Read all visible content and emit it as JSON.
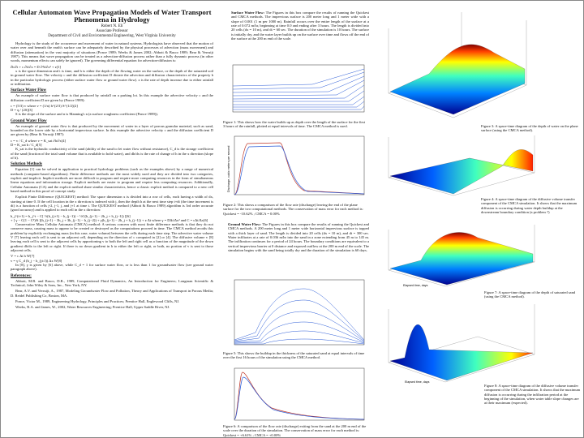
{
  "header": {
    "title": "Cellular Automaton Wave Propagation Models of Water Transport Phenomena in Hydrology",
    "author": "Robert N. Eli",
    "position": "Associate Professor",
    "department": "Department of Civil and Environmental Engineering, West Virginia University"
  },
  "left": [
    {
      "text": "Hydrology is the study of the occurrence and movement of water in natural systems. Hydrologists have observed that the motion of water over and beneath the earth's surface can be adequately described by the physical processes of advection (mass movement) and diffusion (attenuation) in the vast majority of situations (Ponce 1989; Weeks & James 2002; Abbott & Basco 1989; Bear & Verruijt 1987). This means that wave propagation can be treated as a advection-diffusion process rather than a fully dynamic process (in other words, momentum effects can safely be ignored). The governing differential equation for advection-diffusion is:"
    },
    {
      "equation_row": [
        {
          "expr": "∂h/∂t + c ∂h/∂x = D ∂²h/∂x² + z",
          "number": "[1]"
        }
      ]
    },
    {
      "text": "x is the space dimension and t is time, and h is either the depth of the flowing water on the surface, or the depth of the saturated soil in ground water flow. The velocity c and the diffusion coefficient D dictate the advection and diffusion characteristics of the property h in the particular hydrologic process (either surface water flow or ground water flow). z is the rate of depth increase due to either rainfall or infiltration."
    },
    {
      "heading": "Surface Water Flow"
    },
    {
      "text": "An example of surface water flow is that produced by rainfall on a parking lot. In this example the advective velocity c and the diffusion coefficient D are given by (Ponce 1989):"
    },
    {
      "equation_row": [
        {
          "expr": "c = (5/3) v   where   v = (1/n) h^(2/3) S^(1/2)",
          "number": "[2]"
        },
        {
          "expr": "D = q / (2S)",
          "number": "[3]"
        }
      ]
    },
    {
      "text": "S is the slope of the surface and n is Manning's n (a surface roughness coefficient (Ponce 1989))."
    },
    {
      "heading": "Ground Water Flow"
    },
    {
      "text": "An example of ground water flow is that produced by the movement of water in a layer of porous granular material, such as sand, bounded on the lower side by a horizontal impervious surface. In this example the advective velocity c and the diffusion coefficient D are given by (Bear & Verruijt 1987):"
    },
    {
      "equation_row": [
        {
          "expr": "c = v / C_d   where   v = K_sat ∂h/∂x",
          "number": "[4]"
        },
        {
          "expr": "D = K_sat h / C_d",
          "number": "[5]"
        }
      ]
    },
    {
      "text": "K_sat is the hydraulic conductivity of the sand (ability of the sand to let water flow without resistance), C_d is the storage coefficient of the sand (fraction of the total sand volume that is available to hold water), and dh/dx is the rate of change of h in the x direction (slope of h)."
    },
    {
      "heading": "Solution Methods"
    },
    {
      "text": "Equation [1] can be solved in application to practical hydrology problems (such as the examples above) by a range of numerical methods (computer-based algorithms). Finite difference methods are the most widely used and they are divided into two categories, explicit and implicit. Implicit methods are more difficult to program and require more computing resources in the form of simultaneous linear equations and information storage. Explicit methods are easier to program and require less computing resources. Additionally, Cellular Automata (CA) and the explicit method share similar characteristics, hence a classic explicit method is compared to a new cell based method in this proof of concept study."
    },
    {
      "text": "Explicit Finite Difference (QUICKEST) method: The space dimension x is divided into a row of cells, each having a width of dx, starting at time 0. If the cell location in the x direction is indexed with j, then the depth h at the next time step t+dt (the time increment is dt) is a function of cells j-2, j-1, j, and j+1 at time t. The QUICKEST method (Abbott & Basco 1989) algorithm is 3rd order accurate (good accuracy) and is applied to each cell in the x direction:"
    },
    {
      "equation_row": [
        {
          "expr": "h_j^(t+1) = h_j^t − C[ ½(h_(j+1) − h_(j−1)) − ½C(h_(j+1) − 2h_j + h_(j−1)) ]",
          "number": "[6]"
        }
      ]
    },
    {
      "equation_row": [
        {
          "expr": "+ [ γ − C(1 − C²)/6 ](h_(j+1) − 3h_j + 3h_(j−1) − h_(j−2)) + γ(h_(j+1) − 2h_j + h_(j−1)) + z Δt   where  γ = DΔt/Δx²  and  C = cΔt/Δx",
          "number": "[6]"
        }
      ]
    },
    {
      "text": "Conservative Mass Cellular Automata (CMCA) method: A serious concern with most finite difference methods is that they do not conserve mass, causing mass to appear to be created or destroyed as the computations proceed in time. The CMCA method avoids this problem by explicitly exchanging mass (in this case, water volume) between the cells during each time step. The advective water volume V [7] leaving each cell is sent to an adjacent cell, depending on the direction of c computed in [2] or [4]. The diffusive volume v [8] leaving each cell is sent to the adjacent cells by apportioning v to both the left and right cell as a function of the magnitude of the down gradient dh/dx to the left or right. If there is no down gradient in h to either the left or right, or both, no portion of v is sent to those adjacent cells."
    },
    {
      "equation_row": [
        {
          "expr": "V = c Δt h W",
          "number": "[7]"
        },
        {
          "expr": "v = γ C_d (h_j − h_(j±1)) Δx W",
          "number": "[8]"
        }
      ]
    },
    {
      "text": "In [8], γ is given by [6] above, while C_d = 1 for surface water flow, or is less than 1 for groundwater flow (see ground water paragraph above)."
    },
    {
      "heading": "References:"
    },
    {
      "text": "Abbott, M.B. and Basco, D.R., 1989, Computational Fluid Dynamics, An Introduction for Engineers; Longman Scientific & Technical, John Wiley & Sons, Inc., New York, NY."
    },
    {
      "text": "Bear, A.V. and Verruijt, A., 1987, Modeling Groundwater Flow and Pollution, Theory and Applications of Transport in Porous Media; D. Reidel Publishing Co, Boston, MA."
    },
    {
      "text": "Ponce, Victor M., 1989, Engineering Hydrology, Principles and Practices; Prentice Hall, Englewood Cliffs, NJ."
    },
    {
      "text": "Weeks, R.A. and James, W., 2002, Water Resources Engineering; Prentice Hall, Upper Saddle River, NJ."
    }
  ],
  "surface_box": {
    "heading": "Surface Water Flow:",
    "text": "The Figures in this box compare the results of running the Quickest and CMCA methods. The impervious surface is 200 meter long and 1 meter wide with a slope of 0.001 (1 m per 1000 m). Rainfall occurs over the entire length of the surface at a rate of 0.072 m/hr, beginning at time 0.0 and ending after 3 hours. The length is divided into 20 cells (dx = 10 m), and dt = 60 sec. The duration of the simulation is 10 hours. The surface is initially dry, and the water layer builds up on the surface over time and flows off the end of the surface at the 200 m end of the scale."
  },
  "ground_box": {
    "heading": "Ground Water Flow:",
    "text": "The Figures in this box compare the results of running the Quickest and CMCA methods. A 200 meter long and 1 meter wide horizontal impervious surface is topped with a thick layer of sand. The length is divided into 20 cells (dx = 10 m), and dt = 300 sec. Water infiltrates at a rate of 0.036 m/hr into the sand in a zone extending from 45 m to 145 m. The infiltration continues for a period of 24 hours. The boundary conditions are equivalent to a vertical impervious barrier at 0 distance and exposed outflow at the 200 m end of the scale. The simulation begins with the sand being totally dry and the duration of the simulation is 60 days."
  },
  "figures": [
    {
      "caption": "Figure 1: This shows how the water builds up as depth over the length of the surface for the first 3 hours of the rainfall, plotted at equal intervals of time. The CMCA method is used."
    },
    {
      "caption": "Figure 2: This shows a comparison of the flow rate (discharge) leaving the end of the plane surface for the two computational methods. The conservation of mass error for each method is: Quickest = -10.62% ; CMCA = 0.00%",
      "y_label": "Discharge, cubic meters per second"
    },
    {
      "caption": "Figure 3: A space-time diagram of the depth of water on the plane surface (using the CMCA method)."
    },
    {
      "caption": "Figure 4: A space-time diagram of the diffusive volume transfer component of the CMCA simulation. It shows that the maximum diffusion is occurring during water depth buildup at the downstream boundary condition (a problem ?)"
    },
    {
      "caption": "Figure 5: This shows the buildup in the thickness of the saturated sand at equal intervals of time over the first 16 hours of the simulation using the CMCA method."
    },
    {
      "caption": "Figure 6: A comparison of the flow rate (discharge) exiting from the sand at the 200 m end of the scale over the duration of the simulation. The conservation of mass error for each method is: Quickest = +6.61% ; CMCA = +0.00%"
    },
    {
      "caption": "Figure 7: A space-time diagram of the depth of saturated sand (using the CMCA method).",
      "x_label": "Elapsed time, days"
    },
    {
      "caption": "Figure 8: A space-time diagram of the diffusive volume transfer component of the CMCA simulation. It shows that the maximum diffusion is occurring during the infiltration period at the beginning of the simulation, when water table slope changes are at their maximum (expected).",
      "x_label": "Elapsed time, days"
    }
  ]
}
